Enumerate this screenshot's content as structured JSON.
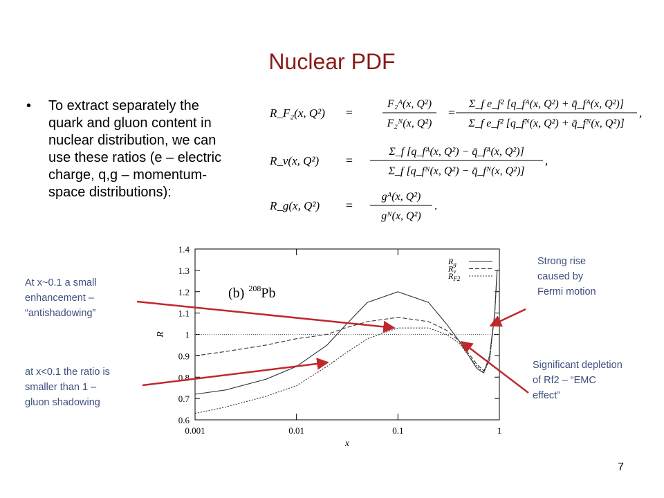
{
  "title": "Nuclear PDF",
  "bullet": {
    "lines": [
      "To extract separately the",
      "quark and gluon content in",
      "nuclear distribution, we can",
      "use these ratios (e – electric",
      "charge, q,g – momentum-",
      "space distributions):"
    ]
  },
  "equations": [
    {
      "lhs": "R_F₂(x, Q²)",
      "equals": "=",
      "fractions": [
        {
          "num": "F₂ᴬ(x, Q²)",
          "den": "F₂ᴺ(x, Q²)"
        },
        {
          "num": "Σ_f e_f² [q_fᴬ(x, Q²) + q̄_fᴬ(x, Q²)]",
          "den": "Σ_f e_f² [q_fᴺ(x, Q²) + q̄_fᴺ(x, Q²)]"
        }
      ],
      "end": ","
    },
    {
      "lhs": "R_v(x, Q²)",
      "equals": "=",
      "fractions": [
        {
          "num": "Σ_f [q_fᴬ(x, Q²) − q̄_fᴬ(x, Q²)]",
          "den": "Σ_f [q_fᴺ(x, Q²) − q̄_fᴺ(x, Q²)]"
        }
      ],
      "end": ","
    },
    {
      "lhs": "R_g(x, Q²)",
      "equals": "=",
      "fractions": [
        {
          "num": "gᴬ(x, Q²)",
          "den": "gᴺ(x, Q²)"
        }
      ],
      "end": "."
    }
  ],
  "chart_data": {
    "type": "line",
    "log_x": true,
    "panel_label": [
      "(b)",
      "208",
      "Pb"
    ],
    "xlabel": "x",
    "ylabel": "R",
    "x": [
      0.001,
      0.002,
      0.005,
      0.01,
      0.02,
      0.03,
      0.05,
      0.1,
      0.2,
      0.3,
      0.4,
      0.5,
      0.6,
      0.7,
      0.8,
      0.9,
      0.95
    ],
    "series": [
      {
        "name": "Rg",
        "color": "#333333",
        "dash": "none",
        "values": [
          0.72,
          0.74,
          0.79,
          0.85,
          0.95,
          1.04,
          1.15,
          1.2,
          1.15,
          1.05,
          0.97,
          0.9,
          0.84,
          0.82,
          0.9,
          1.1,
          1.3
        ]
      },
      {
        "name": "Rv",
        "color": "#333333",
        "dash": "6 3",
        "values": [
          0.9,
          0.92,
          0.95,
          0.98,
          1.0,
          1.03,
          1.06,
          1.08,
          1.06,
          1.02,
          0.97,
          0.91,
          0.86,
          0.83,
          0.88,
          1.1,
          1.3
        ]
      },
      {
        "name": "RF2",
        "color": "#333333",
        "dash": "2 2",
        "values": [
          0.63,
          0.66,
          0.71,
          0.76,
          0.85,
          0.91,
          0.98,
          1.03,
          1.03,
          1.0,
          0.96,
          0.9,
          0.85,
          0.82,
          0.88,
          1.1,
          1.3
        ]
      }
    ],
    "reference_line": 1,
    "xlim": [
      0.001,
      1
    ],
    "xticks": [
      0.001,
      0.01,
      0.1,
      1
    ],
    "ylim": [
      0.6,
      1.4
    ],
    "yticks": [
      0.6,
      0.7,
      0.8,
      0.9,
      1,
      1.1,
      1.2,
      1.3,
      1.4
    ],
    "legend": "top-right"
  },
  "annotations": [
    {
      "lines": [
        "At x~0.1 a small",
        "enhancement –",
        "“antishadowing”"
      ]
    },
    {
      "lines": [
        "at x<0.1 the ratio is",
        "smaller than 1 –",
        "gluon shadowing"
      ]
    },
    {
      "lines": [
        "Strong rise",
        "caused by",
        "Fermi motion"
      ]
    },
    {
      "lines": [
        "Significant depletion",
        "of Rf2 – “EMC",
        "effect”"
      ]
    }
  ],
  "page_number": "7"
}
